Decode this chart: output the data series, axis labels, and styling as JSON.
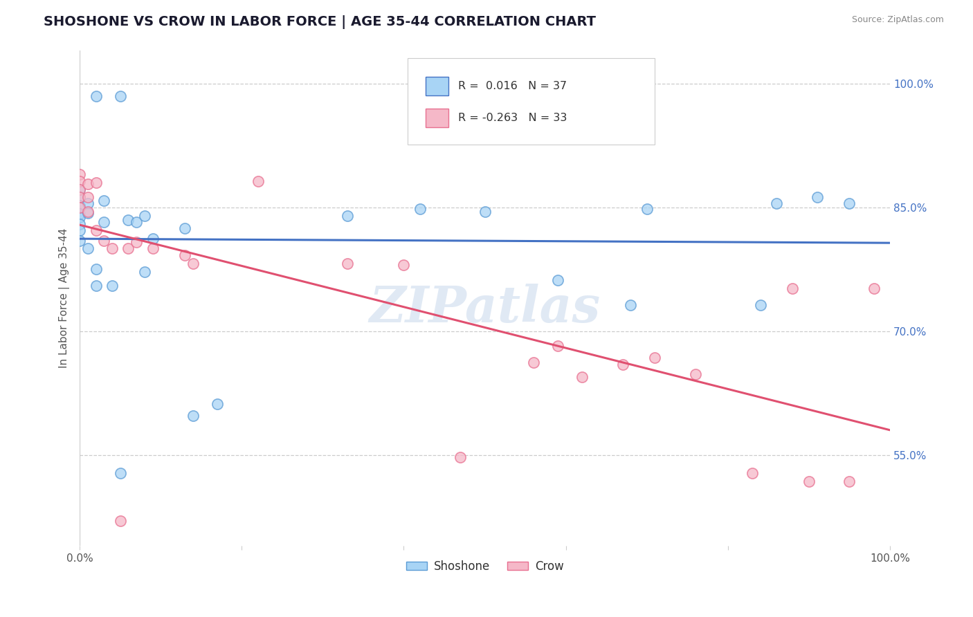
{
  "title": "SHOSHONE VS CROW IN LABOR FORCE | AGE 35-44 CORRELATION CHART",
  "source": "Source: ZipAtlas.com",
  "ylabel": "In Labor Force | Age 35-44",
  "xlim": [
    0.0,
    1.0
  ],
  "ylim": [
    0.44,
    1.04
  ],
  "x_ticks": [
    0.0,
    0.2,
    0.4,
    0.6,
    0.8,
    1.0
  ],
  "x_tick_labels": [
    "0.0%",
    "",
    "",
    "",
    "",
    "100.0%"
  ],
  "y_tick_labels_right": [
    "55.0%",
    "70.0%",
    "85.0%",
    "100.0%"
  ],
  "y_tick_values_right": [
    0.55,
    0.7,
    0.85,
    1.0
  ],
  "legend_r_shoshone": " 0.016",
  "legend_n_shoshone": "37",
  "legend_r_crow": "-0.263",
  "legend_n_crow": "33",
  "shoshone_color": "#a8d4f5",
  "crow_color": "#f5b8c8",
  "shoshone_edge_color": "#5b9bd5",
  "crow_edge_color": "#e87090",
  "shoshone_line_color": "#4472c4",
  "crow_line_color": "#e05070",
  "background_color": "#ffffff",
  "watermark": "ZIPatlas",
  "shoshone_x": [
    0.02,
    0.05,
    0.0,
    0.0,
    0.0,
    0.0,
    0.0,
    0.0,
    0.0,
    0.0,
    0.01,
    0.01,
    0.01,
    0.02,
    0.02,
    0.03,
    0.03,
    0.04,
    0.05,
    0.06,
    0.07,
    0.08,
    0.08,
    0.09,
    0.13,
    0.14,
    0.17,
    0.33,
    0.42,
    0.5,
    0.59,
    0.68,
    0.7,
    0.84,
    0.86,
    0.91,
    0.95
  ],
  "shoshone_y": [
    0.985,
    0.985,
    0.872,
    0.862,
    0.852,
    0.842,
    0.838,
    0.83,
    0.822,
    0.81,
    0.855,
    0.843,
    0.8,
    0.775,
    0.755,
    0.858,
    0.832,
    0.755,
    0.528,
    0.835,
    0.832,
    0.84,
    0.772,
    0.812,
    0.825,
    0.598,
    0.612,
    0.84,
    0.848,
    0.845,
    0.762,
    0.732,
    0.848,
    0.732,
    0.855,
    0.862,
    0.855
  ],
  "crow_x": [
    0.0,
    0.0,
    0.0,
    0.0,
    0.0,
    0.01,
    0.01,
    0.01,
    0.02,
    0.02,
    0.03,
    0.04,
    0.05,
    0.06,
    0.07,
    0.09,
    0.13,
    0.14,
    0.22,
    0.33,
    0.4,
    0.47,
    0.56,
    0.59,
    0.62,
    0.67,
    0.71,
    0.76,
    0.83,
    0.88,
    0.9,
    0.95,
    0.98
  ],
  "crow_y": [
    0.89,
    0.882,
    0.872,
    0.862,
    0.85,
    0.878,
    0.862,
    0.845,
    0.88,
    0.822,
    0.81,
    0.8,
    0.47,
    0.8,
    0.808,
    0.8,
    0.792,
    0.782,
    0.882,
    0.782,
    0.78,
    0.547,
    0.662,
    0.682,
    0.645,
    0.66,
    0.668,
    0.648,
    0.528,
    0.752,
    0.518,
    0.518,
    0.752
  ]
}
